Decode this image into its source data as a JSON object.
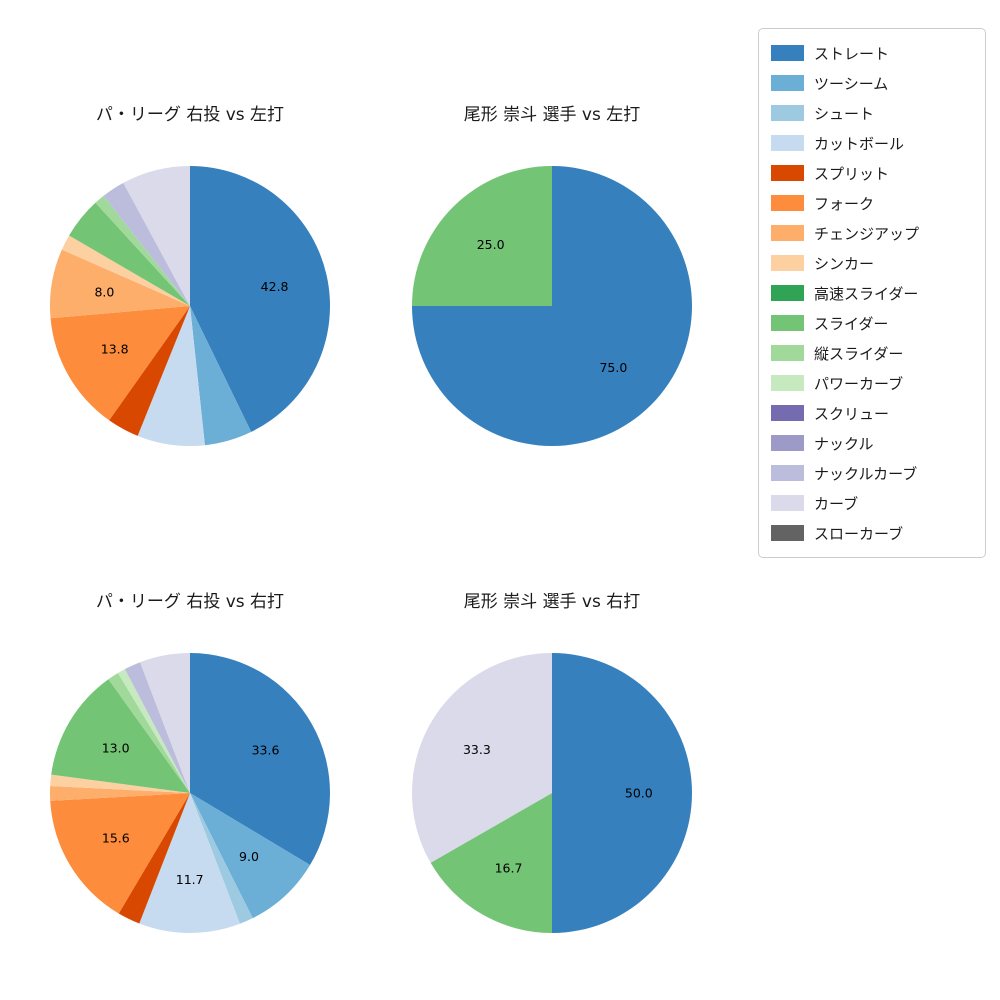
{
  "page": {
    "background": "#ffffff"
  },
  "legend": {
    "position": "right",
    "items": [
      {
        "label": "ストレート",
        "color": "#3580bd"
      },
      {
        "label": "ツーシーム",
        "color": "#6baed6"
      },
      {
        "label": "シュート",
        "color": "#9ecae1"
      },
      {
        "label": "カットボール",
        "color": "#c6dbef"
      },
      {
        "label": "スプリット",
        "color": "#d94801"
      },
      {
        "label": "フォーク",
        "color": "#fd8d3c"
      },
      {
        "label": "チェンジアップ",
        "color": "#fdae6b"
      },
      {
        "label": "シンカー",
        "color": "#fdd0a2"
      },
      {
        "label": "高速スライダー",
        "color": "#31a354"
      },
      {
        "label": "スライダー",
        "color": "#74c476"
      },
      {
        "label": "縦スライダー",
        "color": "#a1d99b"
      },
      {
        "label": "パワーカーブ",
        "color": "#c7e9c0"
      },
      {
        "label": "スクリュー",
        "color": "#756bb1"
      },
      {
        "label": "ナックル",
        "color": "#9e9ac8"
      },
      {
        "label": "ナックルカーブ",
        "color": "#bcbddc"
      },
      {
        "label": "カーブ",
        "color": "#dadaeb"
      },
      {
        "label": "スローカーブ",
        "color": "#636363"
      }
    ]
  },
  "chart_data": [
    {
      "type": "pie",
      "title": "パ・リーグ 右投 vs 左打",
      "start_angle_deg": 90,
      "direction": "clockwise",
      "unit": "percent",
      "slices": [
        {
          "name": "ストレート",
          "value": 42.8,
          "label": "42.8"
        },
        {
          "name": "ツーシーム",
          "value": 5.5
        },
        {
          "name": "カットボール",
          "value": 7.8
        },
        {
          "name": "スプリット",
          "value": 3.7
        },
        {
          "name": "フォーク",
          "value": 13.8,
          "label": "13.8"
        },
        {
          "name": "チェンジアップ",
          "value": 8.0,
          "label": "8.0"
        },
        {
          "name": "シンカー",
          "value": 1.8
        },
        {
          "name": "スライダー",
          "value": 4.8
        },
        {
          "name": "縦スライダー",
          "value": 1.2
        },
        {
          "name": "ナックルカーブ",
          "value": 2.7
        },
        {
          "name": "カーブ",
          "value": 7.9
        }
      ]
    },
    {
      "type": "pie",
      "title": "尾形 崇斗 選手 vs 左打",
      "start_angle_deg": 90,
      "direction": "clockwise",
      "unit": "percent",
      "slices": [
        {
          "name": "ストレート",
          "value": 75.0,
          "label": "75.0"
        },
        {
          "name": "スライダー",
          "value": 25.0,
          "label": "25.0"
        }
      ]
    },
    {
      "type": "pie",
      "title": "パ・リーグ 右投 vs 右打",
      "start_angle_deg": 90,
      "direction": "clockwise",
      "unit": "percent",
      "slices": [
        {
          "name": "ストレート",
          "value": 33.6,
          "label": "33.6"
        },
        {
          "name": "ツーシーム",
          "value": 9.0,
          "label": "9.0"
        },
        {
          "name": "シュート",
          "value": 1.6
        },
        {
          "name": "カットボール",
          "value": 11.7,
          "label": "11.7"
        },
        {
          "name": "スプリット",
          "value": 2.6
        },
        {
          "name": "フォーク",
          "value": 15.6,
          "label": "15.6"
        },
        {
          "name": "チェンジアップ",
          "value": 1.7
        },
        {
          "name": "シンカー",
          "value": 1.3
        },
        {
          "name": "スライダー",
          "value": 13.0,
          "label": "13.0"
        },
        {
          "name": "縦スライダー",
          "value": 1.3
        },
        {
          "name": "パワーカーブ",
          "value": 0.9
        },
        {
          "name": "ナックルカーブ",
          "value": 1.9
        },
        {
          "name": "カーブ",
          "value": 5.8
        }
      ]
    },
    {
      "type": "pie",
      "title": "尾形 崇斗 選手 vs 右打",
      "start_angle_deg": 90,
      "direction": "clockwise",
      "unit": "percent",
      "slices": [
        {
          "name": "ストレート",
          "value": 50.0,
          "label": "50.0"
        },
        {
          "name": "スライダー",
          "value": 16.7,
          "label": "16.7"
        },
        {
          "name": "カーブ",
          "value": 33.3,
          "label": "33.3"
        }
      ]
    }
  ]
}
